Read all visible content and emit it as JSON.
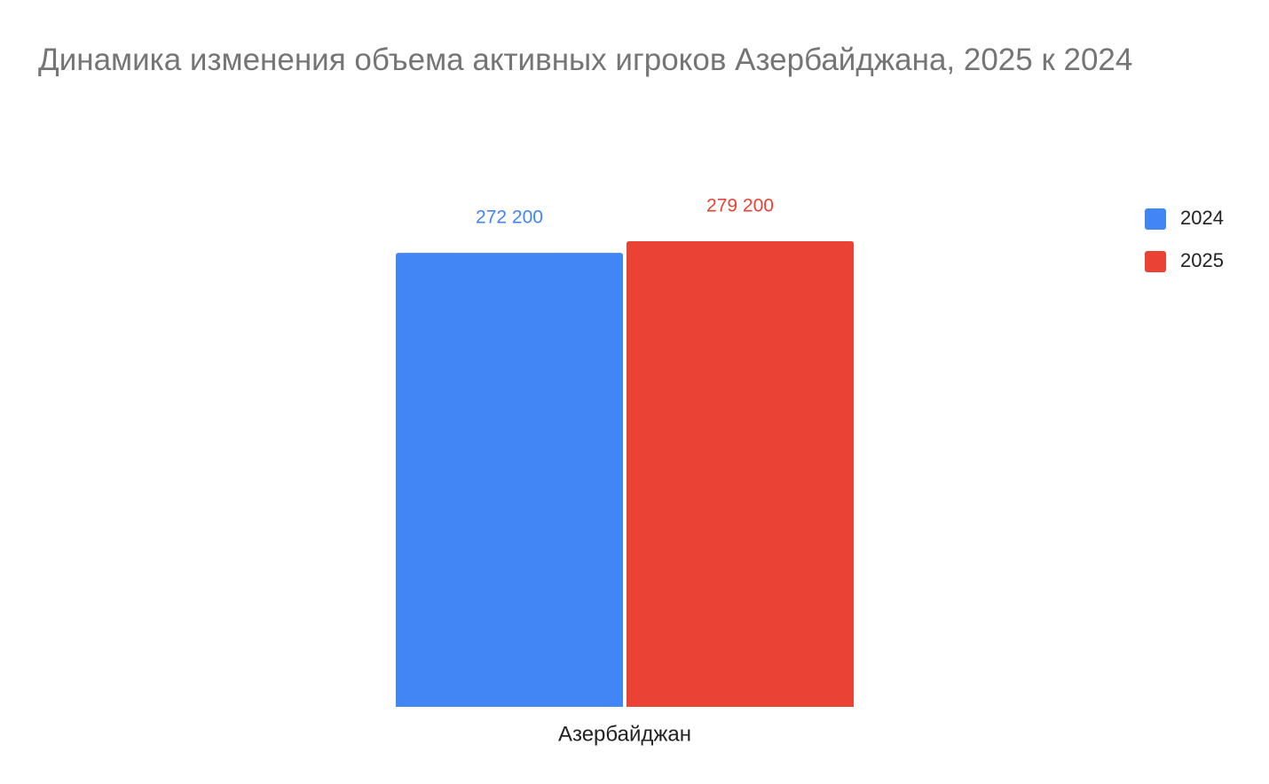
{
  "chart_data": {
    "type": "bar",
    "title": "Динамика изменения объема активных игроков Азербайджана, 2025 к 2024",
    "categories": [
      "Азербайджан"
    ],
    "series": [
      {
        "name": "2024",
        "color": "#4285f4",
        "values": [
          272200
        ],
        "value_labels": [
          "272 200"
        ]
      },
      {
        "name": "2025",
        "color": "#ea4335",
        "values": [
          279200
        ],
        "value_labels": [
          "279 200"
        ]
      }
    ],
    "legend": "right"
  }
}
